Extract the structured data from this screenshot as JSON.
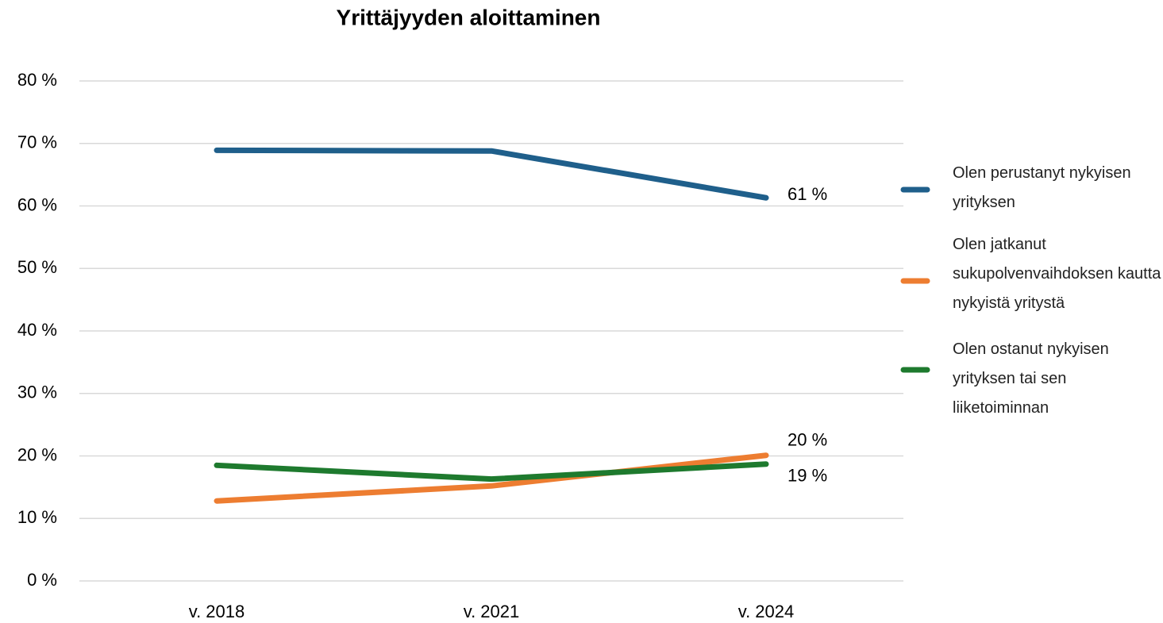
{
  "chart_data": {
    "type": "line",
    "title": "Yrittäjyyden aloittaminen",
    "categories": [
      "v. 2018",
      "v. 2021",
      "v. 2024"
    ],
    "series": [
      {
        "name": "Olen perustanyt nykyisen yrityksen",
        "color": "#1f5f8b",
        "values": [
          68.9,
          68.8,
          61.3
        ],
        "value_labels": [
          null,
          null,
          "61 %"
        ]
      },
      {
        "name": "Olen jatkanut sukupolvenvaihdoksen kautta nykyistä yritystä",
        "color": "#ed7d31",
        "values": [
          12.8,
          15.2,
          20.1
        ],
        "value_labels": [
          null,
          null,
          "20 %"
        ]
      },
      {
        "name": "Olen ostanut nykyisen yrityksen tai sen liiketoiminnan",
        "color": "#1e7a2e",
        "values": [
          18.5,
          16.3,
          18.7
        ],
        "value_labels": [
          null,
          null,
          "19 %"
        ]
      }
    ],
    "ylim": [
      0,
      80
    ],
    "yticks": [
      {
        "value": 0,
        "label": "0 %"
      },
      {
        "value": 10,
        "label": "10 %"
      },
      {
        "value": 20,
        "label": "20 %"
      },
      {
        "value": 30,
        "label": "30 %"
      },
      {
        "value": 40,
        "label": "40 %"
      },
      {
        "value": 50,
        "label": "50 %"
      },
      {
        "value": 60,
        "label": "60 %"
      },
      {
        "value": 70,
        "label": "70 %"
      },
      {
        "value": 80,
        "label": "80 %"
      }
    ],
    "grid": true,
    "legend": "right"
  }
}
